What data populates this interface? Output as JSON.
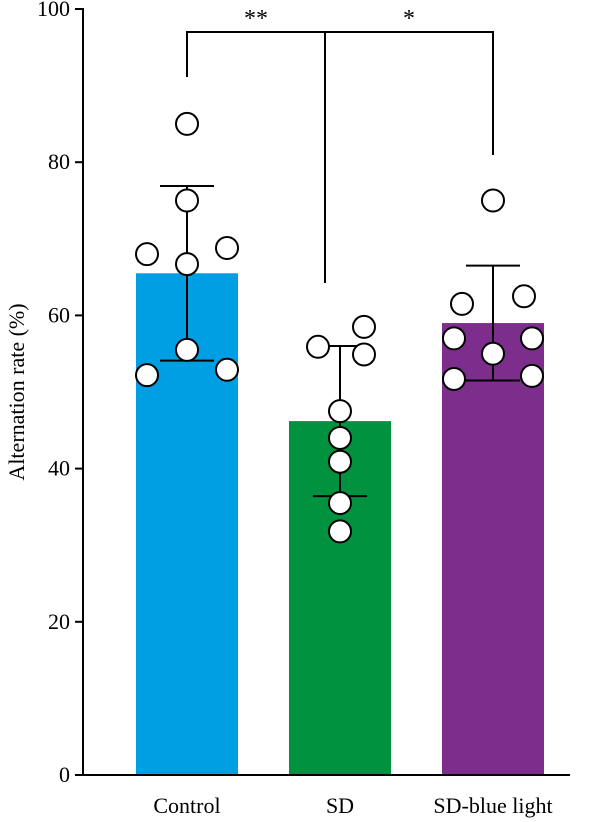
{
  "chart_data": {
    "type": "bar",
    "title": "",
    "xlabel": "",
    "ylabel": "Alternation rate (%)",
    "ylim": [
      0,
      100
    ],
    "yticks": [
      0,
      20,
      40,
      60,
      80,
      100
    ],
    "grid": false,
    "categories": [
      "Control",
      "SD",
      "SD-blue light"
    ],
    "series": [
      {
        "values": [
          65.5,
          46.2,
          59.0
        ],
        "error": [
          11.4,
          9.8,
          7.5
        ],
        "colors": [
          "#009fe3",
          "#00923f",
          "#7d2e8d"
        ],
        "points": [
          [
            85.0,
            75.0,
            68.0,
            68.8,
            66.7,
            55.5,
            52.2,
            52.9
          ],
          [
            55.9,
            58.5,
            54.9,
            47.5,
            44.0,
            40.9,
            35.5,
            31.8
          ],
          [
            75.0,
            61.5,
            62.5,
            57.0,
            57.0,
            55.0,
            51.7,
            52.1
          ]
        ]
      }
    ],
    "comparisons": [
      {
        "from": "Control",
        "to": "SD",
        "label": "**"
      },
      {
        "from": "SD",
        "to": "SD-blue light",
        "label": "*"
      }
    ]
  }
}
